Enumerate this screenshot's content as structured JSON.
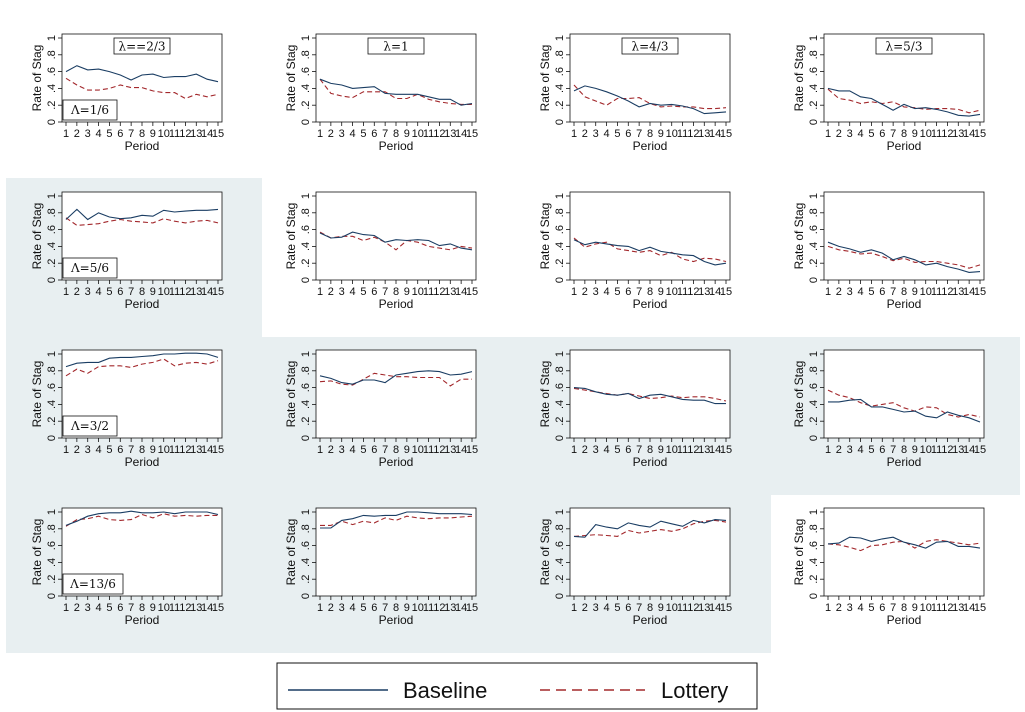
{
  "chart_data": {
    "type": "line",
    "layout": "4x4 grid of line charts",
    "background_color": "#e8eff1",
    "x": [
      1,
      2,
      3,
      4,
      5,
      6,
      7,
      8,
      9,
      10,
      11,
      12,
      13,
      14,
      15
    ],
    "xlabel": "Period",
    "ylabel": "Rate of Stag",
    "ylim": [
      0,
      1
    ],
    "yticks": [
      "0",
      ".2",
      ".4",
      ".6",
      ".8",
      "1"
    ],
    "grid": false,
    "colors": {
      "Baseline": "#1a3d63",
      "Lottery": "#a3282c"
    },
    "legend": {
      "position": "bottom-center",
      "entries": [
        "Baseline",
        "Lottery"
      ]
    },
    "col_titles": [
      "λ==2/3",
      "λ=1",
      "λ=4/3",
      "λ=5/3"
    ],
    "row_labels": [
      "Λ=1/6",
      "Λ=5/6",
      "Λ=3/2",
      "Λ=13/6"
    ],
    "panels": [
      {
        "row": 0,
        "col": 0,
        "shaded": false,
        "baseline": [
          0.6,
          0.67,
          0.62,
          0.63,
          0.6,
          0.56,
          0.5,
          0.56,
          0.57,
          0.53,
          0.54,
          0.54,
          0.57,
          0.51,
          0.48
        ],
        "lottery": [
          0.52,
          0.44,
          0.38,
          0.38,
          0.4,
          0.44,
          0.41,
          0.41,
          0.37,
          0.35,
          0.35,
          0.28,
          0.33,
          0.3,
          0.33
        ]
      },
      {
        "row": 0,
        "col": 1,
        "shaded": false,
        "baseline": [
          0.51,
          0.46,
          0.44,
          0.4,
          0.41,
          0.42,
          0.34,
          0.33,
          0.33,
          0.33,
          0.3,
          0.27,
          0.27,
          0.2,
          0.22
        ],
        "lottery": [
          0.51,
          0.34,
          0.31,
          0.29,
          0.36,
          0.36,
          0.36,
          0.28,
          0.28,
          0.33,
          0.27,
          0.24,
          0.22,
          0.21,
          0.21
        ]
      },
      {
        "row": 0,
        "col": 2,
        "shaded": false,
        "baseline": [
          0.37,
          0.43,
          0.4,
          0.36,
          0.31,
          0.25,
          0.18,
          0.22,
          0.2,
          0.21,
          0.19,
          0.16,
          0.1,
          0.11,
          0.12
        ],
        "lottery": [
          0.44,
          0.3,
          0.25,
          0.2,
          0.28,
          0.28,
          0.29,
          0.22,
          0.18,
          0.19,
          0.18,
          0.18,
          0.16,
          0.16,
          0.17
        ]
      },
      {
        "row": 0,
        "col": 3,
        "shaded": false,
        "baseline": [
          0.4,
          0.37,
          0.37,
          0.3,
          0.28,
          0.21,
          0.14,
          0.21,
          0.16,
          0.17,
          0.15,
          0.12,
          0.08,
          0.07,
          0.09
        ],
        "lottery": [
          0.39,
          0.28,
          0.26,
          0.22,
          0.24,
          0.22,
          0.24,
          0.18,
          0.17,
          0.15,
          0.16,
          0.16,
          0.15,
          0.11,
          0.14
        ]
      },
      {
        "row": 1,
        "col": 0,
        "shaded": true,
        "baseline": [
          0.72,
          0.84,
          0.72,
          0.8,
          0.75,
          0.73,
          0.74,
          0.77,
          0.76,
          0.83,
          0.81,
          0.82,
          0.83,
          0.83,
          0.84
        ],
        "lottery": [
          0.74,
          0.65,
          0.66,
          0.67,
          0.7,
          0.72,
          0.7,
          0.69,
          0.68,
          0.73,
          0.7,
          0.68,
          0.7,
          0.71,
          0.68
        ]
      },
      {
        "row": 1,
        "col": 1,
        "shaded": false,
        "baseline": [
          0.56,
          0.5,
          0.51,
          0.57,
          0.54,
          0.53,
          0.45,
          0.48,
          0.47,
          0.48,
          0.47,
          0.41,
          0.43,
          0.38,
          0.36
        ],
        "lottery": [
          0.57,
          0.5,
          0.52,
          0.52,
          0.47,
          0.51,
          0.45,
          0.36,
          0.47,
          0.45,
          0.4,
          0.38,
          0.36,
          0.4,
          0.38
        ]
      },
      {
        "row": 1,
        "col": 2,
        "shaded": false,
        "baseline": [
          0.48,
          0.42,
          0.45,
          0.43,
          0.41,
          0.4,
          0.35,
          0.39,
          0.34,
          0.32,
          0.3,
          0.29,
          0.22,
          0.18,
          0.2
        ],
        "lottery": [
          0.5,
          0.39,
          0.43,
          0.45,
          0.37,
          0.35,
          0.33,
          0.35,
          0.29,
          0.33,
          0.25,
          0.22,
          0.26,
          0.25,
          0.22
        ]
      },
      {
        "row": 1,
        "col": 3,
        "shaded": false,
        "baseline": [
          0.45,
          0.4,
          0.37,
          0.33,
          0.36,
          0.32,
          0.24,
          0.28,
          0.24,
          0.18,
          0.2,
          0.16,
          0.13,
          0.09,
          0.1
        ],
        "lottery": [
          0.4,
          0.36,
          0.34,
          0.31,
          0.32,
          0.28,
          0.23,
          0.26,
          0.21,
          0.22,
          0.22,
          0.2,
          0.18,
          0.14,
          0.18
        ]
      },
      {
        "row": 2,
        "col": 0,
        "shaded": true,
        "baseline": [
          0.85,
          0.89,
          0.9,
          0.9,
          0.95,
          0.96,
          0.96,
          0.97,
          0.98,
          1.0,
          1.0,
          1.01,
          1.01,
          1.0,
          0.96
        ],
        "lottery": [
          0.74,
          0.82,
          0.77,
          0.85,
          0.86,
          0.86,
          0.84,
          0.88,
          0.9,
          0.94,
          0.86,
          0.89,
          0.9,
          0.88,
          0.92
        ]
      },
      {
        "row": 2,
        "col": 1,
        "shaded": true,
        "baseline": [
          0.74,
          0.71,
          0.66,
          0.64,
          0.69,
          0.69,
          0.66,
          0.75,
          0.77,
          0.79,
          0.8,
          0.79,
          0.75,
          0.76,
          0.79
        ],
        "lottery": [
          0.67,
          0.68,
          0.64,
          0.63,
          0.7,
          0.77,
          0.75,
          0.73,
          0.73,
          0.72,
          0.72,
          0.72,
          0.62,
          0.7,
          0.7
        ]
      },
      {
        "row": 2,
        "col": 2,
        "shaded": true,
        "baseline": [
          0.6,
          0.59,
          0.55,
          0.52,
          0.51,
          0.53,
          0.47,
          0.51,
          0.52,
          0.49,
          0.46,
          0.45,
          0.45,
          0.41,
          0.41
        ],
        "lottery": [
          0.59,
          0.57,
          0.55,
          0.53,
          0.51,
          0.53,
          0.5,
          0.47,
          0.48,
          0.5,
          0.48,
          0.49,
          0.49,
          0.47,
          0.44
        ]
      },
      {
        "row": 2,
        "col": 3,
        "shaded": false,
        "baseline": [
          0.43,
          0.43,
          0.45,
          0.46,
          0.37,
          0.37,
          0.34,
          0.31,
          0.32,
          0.26,
          0.24,
          0.31,
          0.27,
          0.24,
          0.19
        ],
        "lottery": [
          0.57,
          0.51,
          0.48,
          0.42,
          0.38,
          0.4,
          0.42,
          0.36,
          0.32,
          0.37,
          0.36,
          0.28,
          0.25,
          0.28,
          0.25
        ]
      },
      {
        "row": 3,
        "col": 0,
        "shaded": true,
        "baseline": [
          0.84,
          0.89,
          0.95,
          0.98,
          0.99,
          0.99,
          1.01,
          0.99,
          0.99,
          1.0,
          0.98,
          1.0,
          1.0,
          1.0,
          0.97
        ],
        "lottery": [
          0.83,
          0.91,
          0.92,
          0.95,
          0.91,
          0.9,
          0.91,
          0.97,
          0.93,
          0.98,
          0.95,
          0.96,
          0.95,
          0.96,
          0.96
        ]
      },
      {
        "row": 3,
        "col": 1,
        "shaded": true,
        "baseline": [
          0.81,
          0.81,
          0.9,
          0.92,
          0.96,
          0.95,
          0.96,
          0.96,
          1.0,
          1.0,
          0.99,
          0.98,
          0.98,
          0.98,
          0.97
        ],
        "lottery": [
          0.84,
          0.84,
          0.89,
          0.85,
          0.89,
          0.87,
          0.93,
          0.9,
          0.95,
          0.93,
          0.92,
          0.93,
          0.93,
          0.94,
          0.95
        ]
      },
      {
        "row": 3,
        "col": 2,
        "shaded": true,
        "baseline": [
          0.71,
          0.7,
          0.85,
          0.82,
          0.8,
          0.87,
          0.84,
          0.82,
          0.89,
          0.86,
          0.83,
          0.9,
          0.87,
          0.91,
          0.9
        ],
        "lottery": [
          0.71,
          0.72,
          0.73,
          0.72,
          0.71,
          0.78,
          0.75,
          0.77,
          0.79,
          0.77,
          0.8,
          0.86,
          0.89,
          0.9,
          0.88
        ]
      },
      {
        "row": 3,
        "col": 3,
        "shaded": true,
        "baseline": [
          0.62,
          0.63,
          0.7,
          0.69,
          0.65,
          0.68,
          0.7,
          0.64,
          0.61,
          0.57,
          0.64,
          0.65,
          0.59,
          0.59,
          0.57
        ],
        "lottery": [
          0.62,
          0.61,
          0.58,
          0.54,
          0.6,
          0.61,
          0.64,
          0.65,
          0.57,
          0.65,
          0.67,
          0.65,
          0.63,
          0.61,
          0.63
        ]
      }
    ]
  }
}
